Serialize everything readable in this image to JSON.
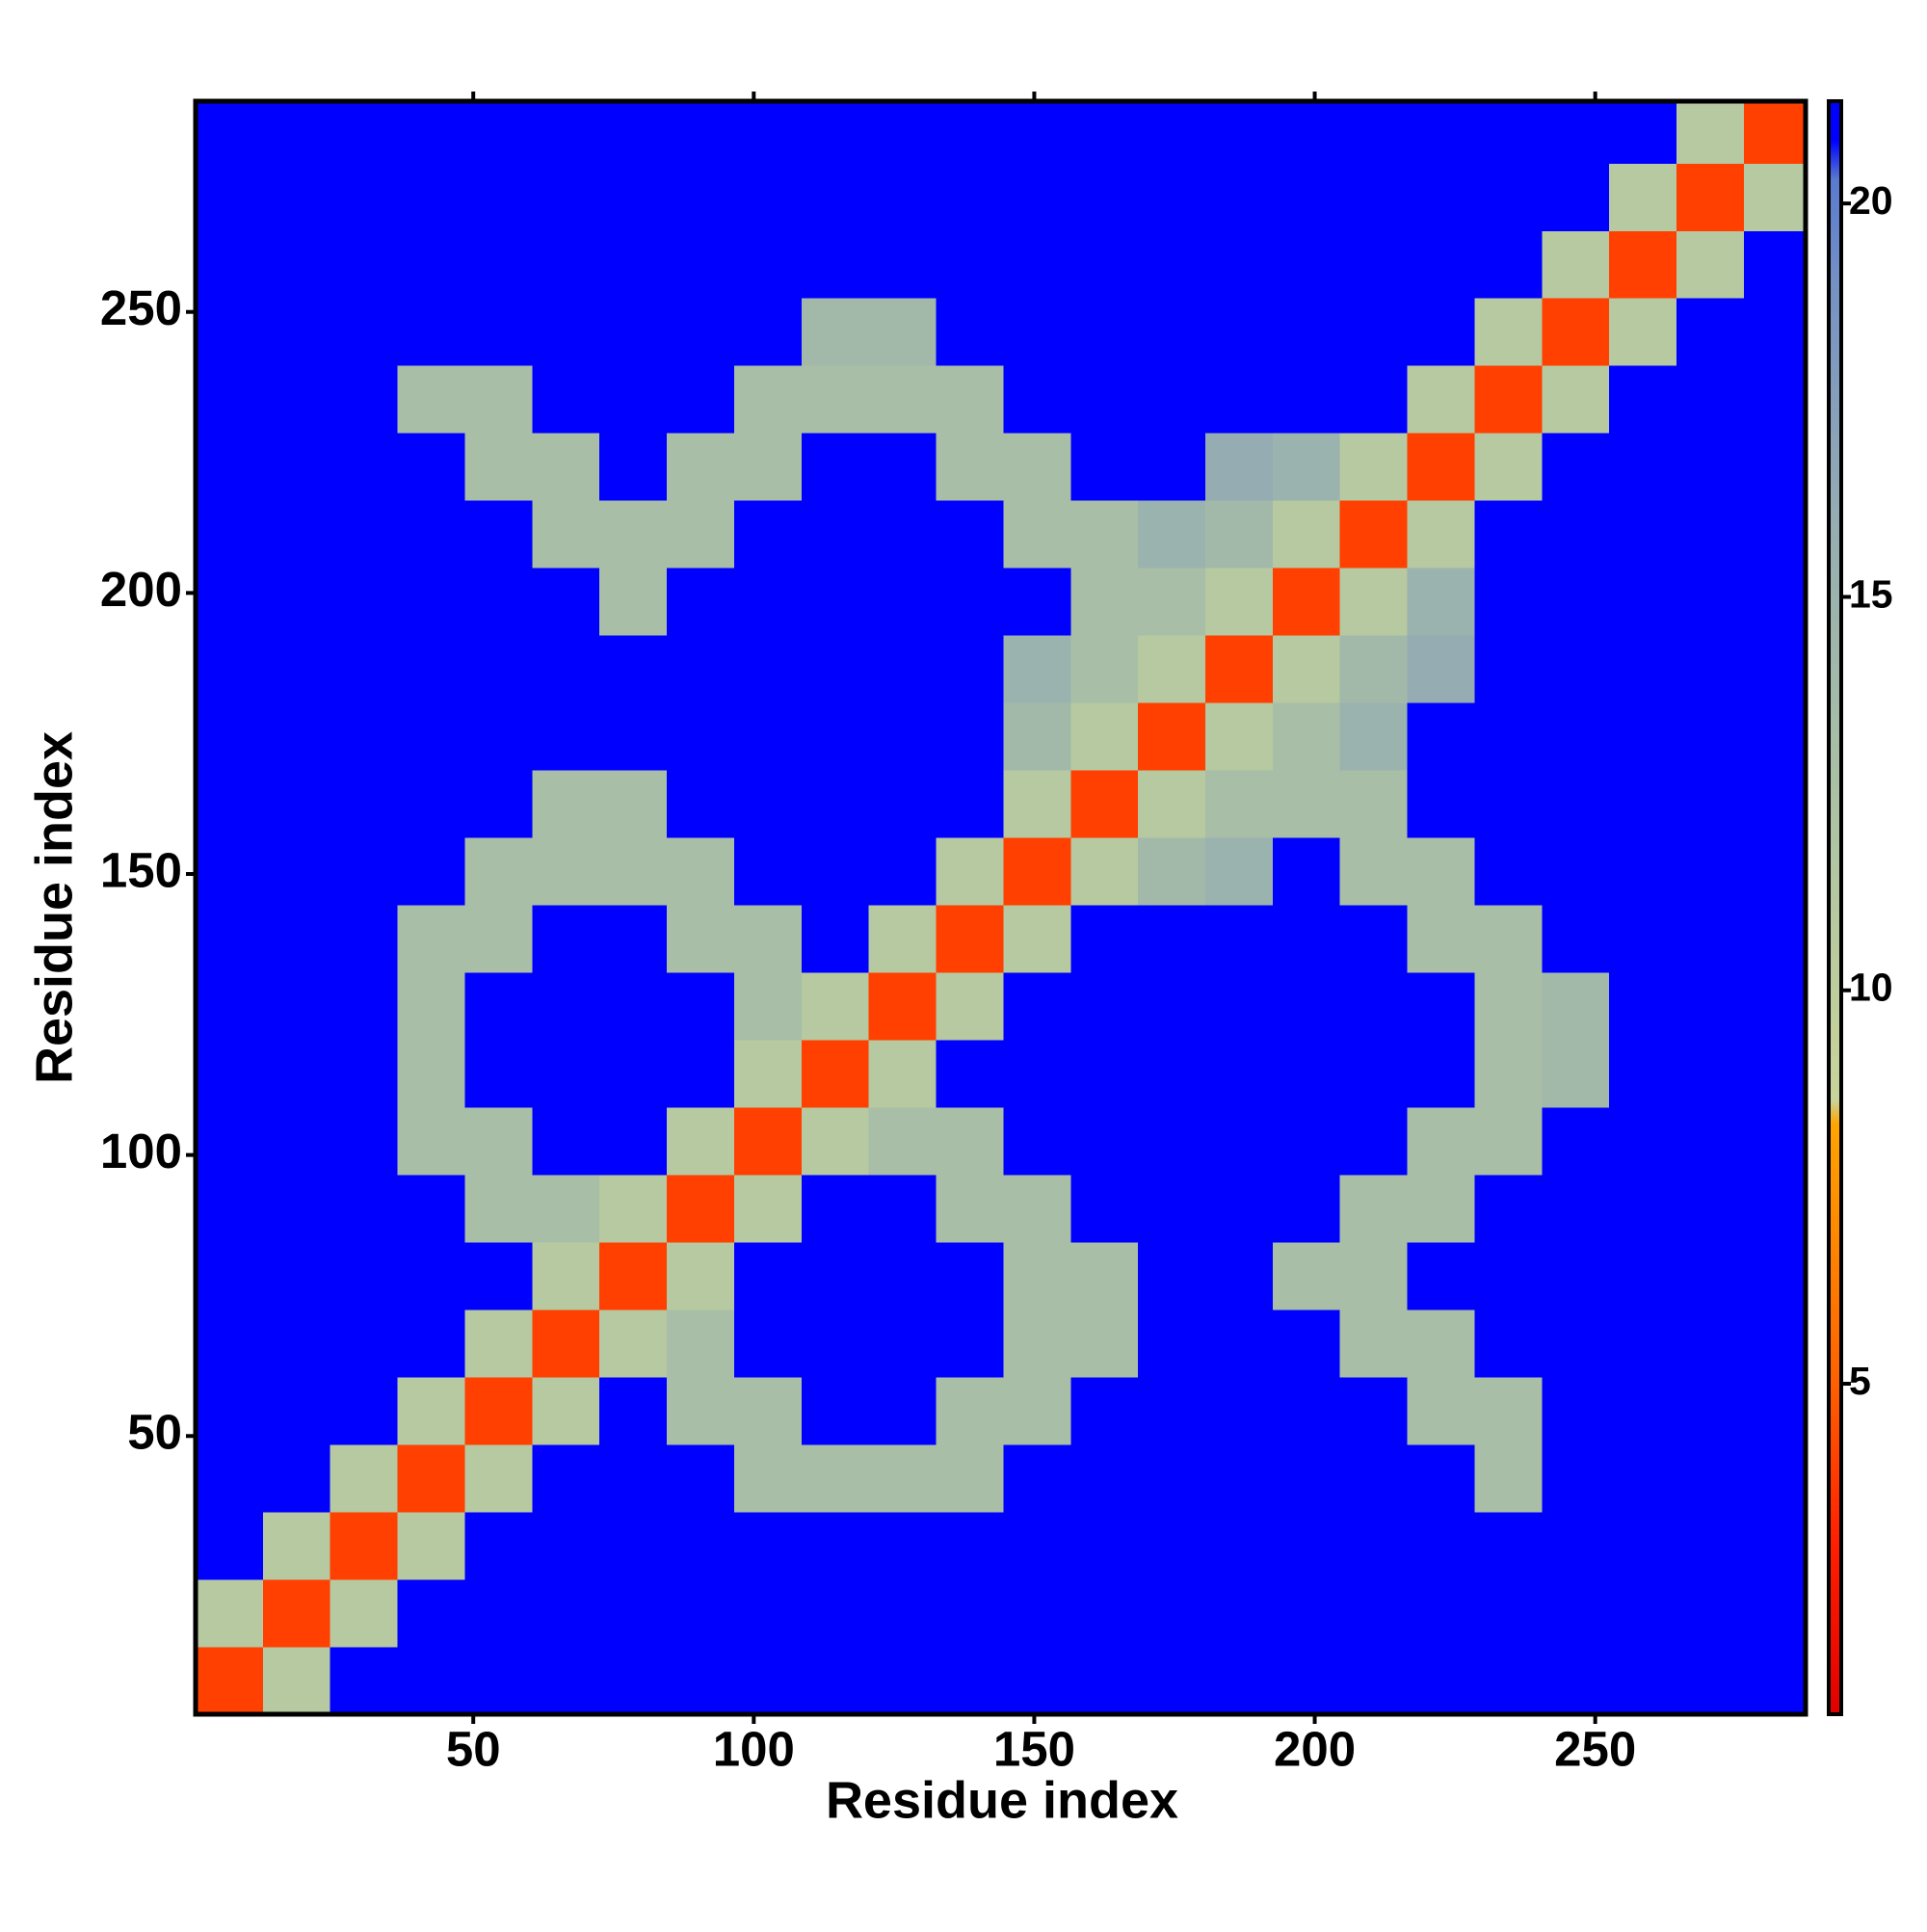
{
  "chart_data": {
    "type": "heatmap",
    "xlabel": "Residue index",
    "ylabel": "Residue index",
    "bins": [
      0.5,
      12.5,
      24.5,
      36.5,
      48.5,
      60.5,
      72.5,
      84.5,
      96.5,
      108.5,
      120.5,
      132.5,
      144.5,
      156.5,
      168.5,
      180.5,
      192.5,
      204.5,
      216.5,
      228.5,
      240.5,
      252.5,
      264.5,
      276.5,
      287.5
    ],
    "z": [
      [
        4,
        11,
        21,
        21,
        21,
        21,
        21,
        21,
        21,
        21,
        21,
        21,
        21,
        21,
        21,
        21,
        21,
        21,
        21,
        21,
        21,
        21,
        21,
        21
      ],
      [
        11,
        4,
        11,
        21,
        21,
        21,
        21,
        21,
        21,
        21,
        21,
        21,
        21,
        21,
        21,
        21,
        21,
        21,
        21,
        21,
        21,
        21,
        21,
        21
      ],
      [
        21,
        11,
        4,
        11,
        21,
        21,
        21,
        21,
        21,
        21,
        21,
        21,
        21,
        21,
        21,
        21,
        21,
        21,
        21,
        21,
        21,
        21,
        21,
        21
      ],
      [
        21,
        21,
        11,
        4,
        11,
        21,
        21,
        21,
        13,
        13,
        13,
        13,
        21,
        21,
        21,
        21,
        21,
        21,
        21,
        13,
        21,
        21,
        21,
        21
      ],
      [
        21,
        21,
        21,
        11,
        4,
        11,
        21,
        13,
        13,
        21,
        21,
        13,
        13,
        21,
        21,
        21,
        21,
        21,
        13,
        13,
        21,
        21,
        21,
        21
      ],
      [
        21,
        21,
        21,
        21,
        11,
        4,
        11,
        13,
        21,
        21,
        21,
        21,
        13,
        13,
        21,
        21,
        21,
        13,
        13,
        21,
        21,
        21,
        21,
        21
      ],
      [
        21,
        21,
        21,
        21,
        21,
        11,
        4,
        11,
        21,
        21,
        21,
        21,
        13,
        13,
        21,
        21,
        13,
        13,
        21,
        21,
        21,
        21,
        21,
        21
      ],
      [
        21,
        21,
        21,
        21,
        13,
        13,
        11,
        4,
        11,
        21,
        21,
        13,
        13,
        21,
        21,
        21,
        21,
        13,
        13,
        21,
        21,
        21,
        21,
        21
      ],
      [
        21,
        21,
        21,
        13,
        13,
        21,
        21,
        11,
        4,
        11,
        13,
        13,
        21,
        21,
        21,
        21,
        21,
        21,
        13,
        13,
        21,
        21,
        21,
        21
      ],
      [
        21,
        21,
        21,
        13,
        21,
        21,
        21,
        21,
        11,
        4,
        11,
        21,
        21,
        21,
        21,
        21,
        21,
        21,
        21,
        13,
        14,
        21,
        21,
        21
      ],
      [
        21,
        21,
        21,
        13,
        21,
        21,
        21,
        21,
        13,
        11,
        4,
        11,
        21,
        21,
        21,
        21,
        21,
        21,
        21,
        13,
        14,
        21,
        21,
        21
      ],
      [
        21,
        21,
        21,
        13,
        13,
        21,
        21,
        13,
        13,
        21,
        11,
        4,
        11,
        21,
        21,
        21,
        21,
        21,
        13,
        13,
        21,
        21,
        21,
        21
      ],
      [
        21,
        21,
        21,
        21,
        13,
        13,
        13,
        13,
        21,
        21,
        21,
        11,
        4,
        11,
        14,
        15,
        21,
        13,
        13,
        21,
        21,
        21,
        21,
        21
      ],
      [
        21,
        21,
        21,
        21,
        21,
        13,
        13,
        21,
        21,
        21,
        21,
        21,
        11,
        4,
        11,
        13,
        13,
        13,
        21,
        21,
        21,
        21,
        21,
        21
      ],
      [
        21,
        21,
        21,
        21,
        21,
        21,
        21,
        21,
        21,
        21,
        21,
        21,
        14,
        11,
        4,
        11,
        13,
        15,
        21,
        21,
        21,
        21,
        21,
        21
      ],
      [
        21,
        21,
        21,
        21,
        21,
        21,
        21,
        21,
        21,
        21,
        21,
        21,
        15,
        13,
        11,
        4,
        11,
        14,
        16,
        21,
        21,
        21,
        21,
        21
      ],
      [
        21,
        21,
        21,
        21,
        21,
        21,
        13,
        21,
        21,
        21,
        21,
        21,
        21,
        13,
        13,
        11,
        4,
        11,
        15,
        21,
        21,
        21,
        21,
        21
      ],
      [
        21,
        21,
        21,
        21,
        21,
        13,
        13,
        13,
        21,
        21,
        21,
        21,
        13,
        13,
        15,
        14,
        11,
        4,
        11,
        21,
        21,
        21,
        21,
        21
      ],
      [
        21,
        21,
        21,
        21,
        13,
        13,
        21,
        13,
        13,
        21,
        21,
        13,
        13,
        21,
        21,
        16,
        15,
        11,
        4,
        11,
        21,
        21,
        21,
        21
      ],
      [
        21,
        21,
        21,
        13,
        13,
        21,
        21,
        21,
        13,
        13,
        13,
        13,
        21,
        21,
        21,
        21,
        21,
        21,
        11,
        4,
        11,
        21,
        21,
        21
      ],
      [
        21,
        21,
        21,
        21,
        21,
        21,
        21,
        21,
        21,
        14,
        14,
        21,
        21,
        21,
        21,
        21,
        21,
        21,
        21,
        11,
        4,
        11,
        21,
        21
      ],
      [
        21,
        21,
        21,
        21,
        21,
        21,
        21,
        21,
        21,
        21,
        21,
        21,
        21,
        21,
        21,
        21,
        21,
        21,
        21,
        21,
        11,
        4,
        11,
        21
      ],
      [
        21,
        21,
        21,
        21,
        21,
        21,
        21,
        21,
        21,
        21,
        21,
        21,
        21,
        21,
        21,
        21,
        21,
        21,
        21,
        21,
        21,
        11,
        4,
        11
      ],
      [
        21,
        21,
        21,
        21,
        21,
        21,
        21,
        21,
        21,
        21,
        21,
        21,
        21,
        21,
        21,
        21,
        21,
        21,
        21,
        21,
        21,
        21,
        11,
        4
      ]
    ],
    "xlim": [
      0.5,
      287.5
    ],
    "ylim": [
      0.5,
      287.5
    ],
    "xticks": [
      50,
      100,
      150,
      200,
      250
    ],
    "yticks": [
      50,
      100,
      150,
      200,
      250
    ],
    "zlim": [
      0.8,
      21.3
    ],
    "zticks": [
      5,
      10,
      15,
      20
    ],
    "colorscale": [
      [
        0.8,
        "#e00000"
      ],
      [
        3,
        "#ff2000"
      ],
      [
        5,
        "#ff6000"
      ],
      [
        8.3,
        "#ffa500"
      ],
      [
        8.6,
        "#c9d49a"
      ],
      [
        12,
        "#aec4a2"
      ],
      [
        16,
        "#95adb2"
      ],
      [
        19,
        "#7591c4"
      ],
      [
        20.3,
        "#5a7ad0"
      ],
      [
        20.8,
        "#0000ff"
      ],
      [
        21.3,
        "#0000ff"
      ]
    ]
  }
}
